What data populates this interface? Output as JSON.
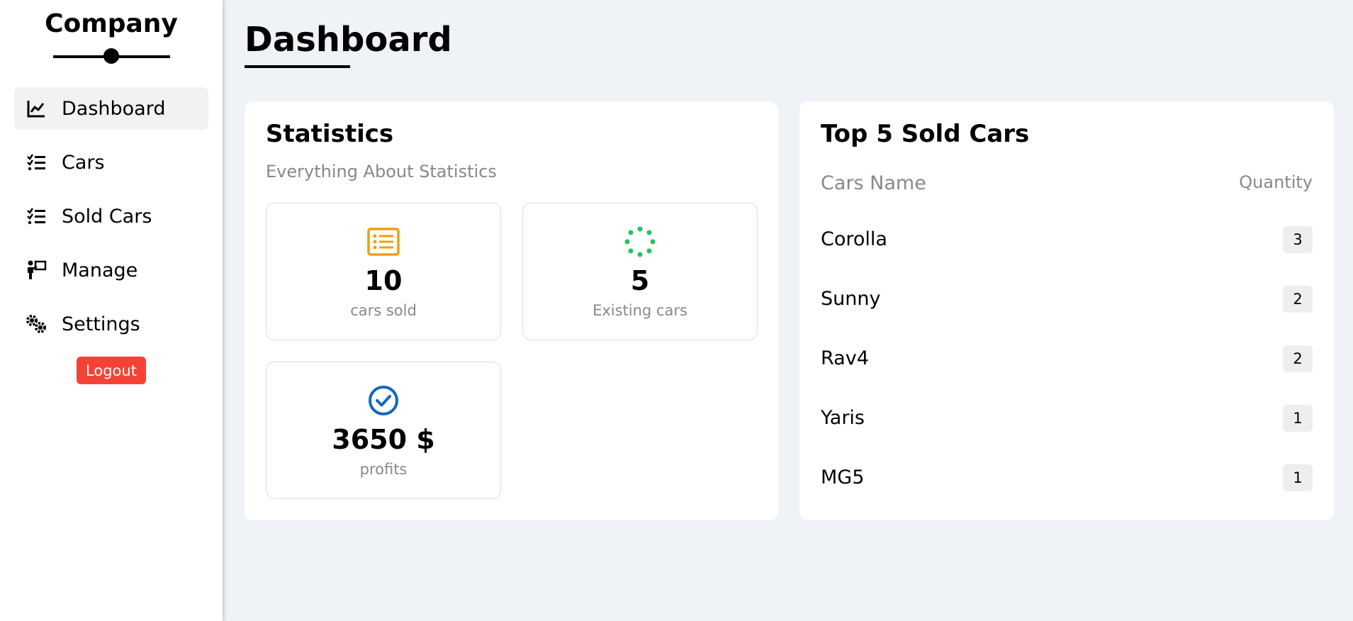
{
  "sidebar": {
    "brand": "Company",
    "items": [
      {
        "label": "Dashboard",
        "icon": "chart-line-icon",
        "active": true
      },
      {
        "label": "Cars",
        "icon": "list-check-icon"
      },
      {
        "label": "Sold Cars",
        "icon": "list-check-icon"
      },
      {
        "label": "Manage",
        "icon": "person-board-icon"
      },
      {
        "label": "Settings",
        "icon": "gears-icon"
      }
    ],
    "logout_label": "Logout"
  },
  "page": {
    "title": "Dashboard"
  },
  "statistics": {
    "title": "Statistics",
    "subtitle": "Everything About Statistics",
    "cards": [
      {
        "value": "10",
        "label": "cars sold",
        "icon": "list-alt-icon",
        "color": "#f39c12"
      },
      {
        "value": "5",
        "label": "Existing cars",
        "icon": "spinner-dots-icon",
        "color": "#22c55e"
      },
      {
        "value": "3650 $",
        "label": "profits",
        "icon": "check-circle-icon",
        "color": "#1565c0"
      }
    ]
  },
  "top_sold": {
    "title": "Top 5 Sold Cars",
    "col_name": "Cars Name",
    "col_qty": "Quantity",
    "rows": [
      {
        "name": "Corolla",
        "qty": "3"
      },
      {
        "name": "Sunny",
        "qty": "2"
      },
      {
        "name": "Rav4",
        "qty": "2"
      },
      {
        "name": "Yaris",
        "qty": "1"
      },
      {
        "name": "MG5",
        "qty": "1"
      }
    ]
  },
  "colors": {
    "accent_logout": "#f44336",
    "background": "#eff2f7"
  }
}
